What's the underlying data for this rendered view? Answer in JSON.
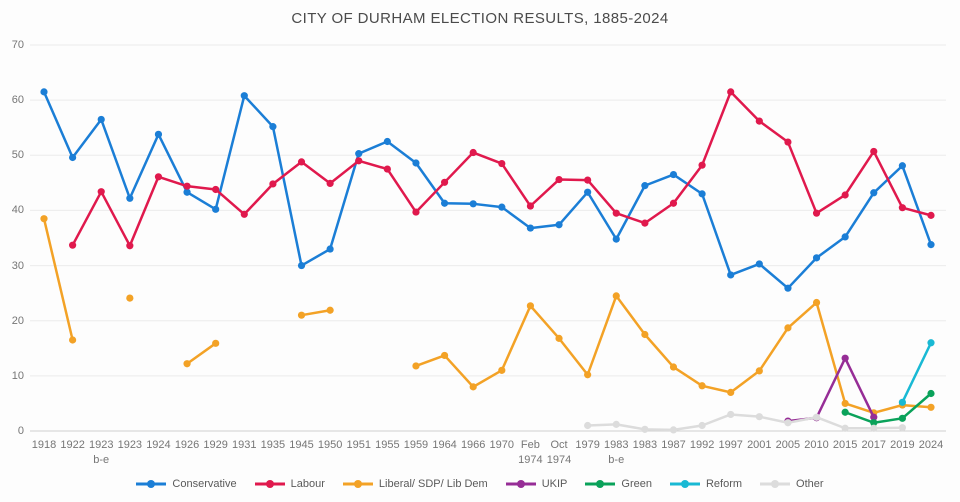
{
  "title": "CITY OF DURHAM ELECTION RESULTS, 1885-2024",
  "chart_data": {
    "type": "line",
    "title": "CITY OF DURHAM ELECTION RESULTS, 1885-2024",
    "xlabel": "",
    "ylabel": "",
    "grid": "horizontal",
    "legend_position": "bottom",
    "y_axis": {
      "min": 0,
      "max": 70,
      "ticks": [
        0,
        10,
        20,
        30,
        40,
        50,
        60,
        70
      ]
    },
    "categories": [
      [
        "1918"
      ],
      [
        "1922"
      ],
      [
        "1923",
        "b-e"
      ],
      [
        "1923"
      ],
      [
        "1924"
      ],
      [
        "1926"
      ],
      [
        "1929"
      ],
      [
        "1931"
      ],
      [
        "1935"
      ],
      [
        "1945"
      ],
      [
        "1950"
      ],
      [
        "1951"
      ],
      [
        "1955"
      ],
      [
        "1959"
      ],
      [
        "1964"
      ],
      [
        "1966"
      ],
      [
        "1970"
      ],
      [
        "Feb",
        "1974"
      ],
      [
        "Oct",
        "1974"
      ],
      [
        "1979"
      ],
      [
        "1983",
        "b-e"
      ],
      [
        "1983"
      ],
      [
        "1987"
      ],
      [
        "1992"
      ],
      [
        "1997"
      ],
      [
        "2001"
      ],
      [
        "2005"
      ],
      [
        "2010"
      ],
      [
        "2015"
      ],
      [
        "2017"
      ],
      [
        "2019"
      ],
      [
        "2024"
      ]
    ],
    "series": [
      {
        "name": "Conservative",
        "color": "#1b7ed6",
        "values": [
          61.5,
          49.6,
          56.5,
          42.2,
          53.8,
          43.3,
          40.2,
          60.8,
          55.2,
          30.0,
          33.0,
          50.3,
          52.5,
          48.6,
          41.3,
          41.2,
          40.6,
          36.8,
          37.4,
          43.3,
          34.8,
          44.5,
          46.5,
          43.0,
          28.3,
          30.3,
          25.9,
          31.4,
          35.2,
          43.2,
          48.1,
          33.8
        ]
      },
      {
        "name": "Labour",
        "color": "#e0194d",
        "values": [
          null,
          33.7,
          43.4,
          33.6,
          46.1,
          44.4,
          43.8,
          39.3,
          44.8,
          48.8,
          44.9,
          49.0,
          47.5,
          39.7,
          45.1,
          50.5,
          48.5,
          40.8,
          45.6,
          45.5,
          39.5,
          37.7,
          41.3,
          48.2,
          61.5,
          56.2,
          52.4,
          39.5,
          42.8,
          50.7,
          40.5,
          39.1
        ]
      },
      {
        "name": "Liberal/ SDP/ Lib Dem",
        "color": "#f3a226",
        "values": [
          38.5,
          16.5,
          null,
          24.1,
          null,
          12.2,
          15.9,
          null,
          null,
          21.0,
          21.9,
          null,
          null,
          11.8,
          13.7,
          8.0,
          11.0,
          22.7,
          16.8,
          10.2,
          24.5,
          17.5,
          11.6,
          8.2,
          7.0,
          10.9,
          18.7,
          23.3,
          5.0,
          3.3,
          4.7,
          4.3
        ]
      },
      {
        "name": "UKIP",
        "color": "#962d96",
        "values": [
          null,
          null,
          null,
          null,
          null,
          null,
          null,
          null,
          null,
          null,
          null,
          null,
          null,
          null,
          null,
          null,
          null,
          null,
          null,
          null,
          null,
          null,
          null,
          null,
          null,
          null,
          1.8,
          2.4,
          13.2,
          2.5,
          null,
          null
        ]
      },
      {
        "name": "Green",
        "color": "#0aa25a",
        "values": [
          null,
          null,
          null,
          null,
          null,
          null,
          null,
          null,
          null,
          null,
          null,
          null,
          null,
          null,
          null,
          null,
          null,
          null,
          null,
          null,
          null,
          null,
          null,
          null,
          null,
          null,
          null,
          null,
          3.4,
          1.5,
          2.3,
          6.8
        ]
      },
      {
        "name": "Reform",
        "color": "#19b9d4",
        "values": [
          null,
          null,
          null,
          null,
          null,
          null,
          null,
          null,
          null,
          null,
          null,
          null,
          null,
          null,
          null,
          null,
          null,
          null,
          null,
          null,
          null,
          null,
          null,
          null,
          null,
          null,
          null,
          null,
          null,
          null,
          5.2,
          16.0
        ]
      },
      {
        "name": "Other",
        "color": "#dcdcdc",
        "values": [
          null,
          null,
          null,
          null,
          null,
          null,
          null,
          null,
          null,
          null,
          null,
          null,
          null,
          null,
          null,
          null,
          null,
          null,
          null,
          1.0,
          1.2,
          0.3,
          0.2,
          1.0,
          3.0,
          2.6,
          1.5,
          2.5,
          0.5,
          0.5,
          0.6,
          null
        ]
      }
    ]
  }
}
